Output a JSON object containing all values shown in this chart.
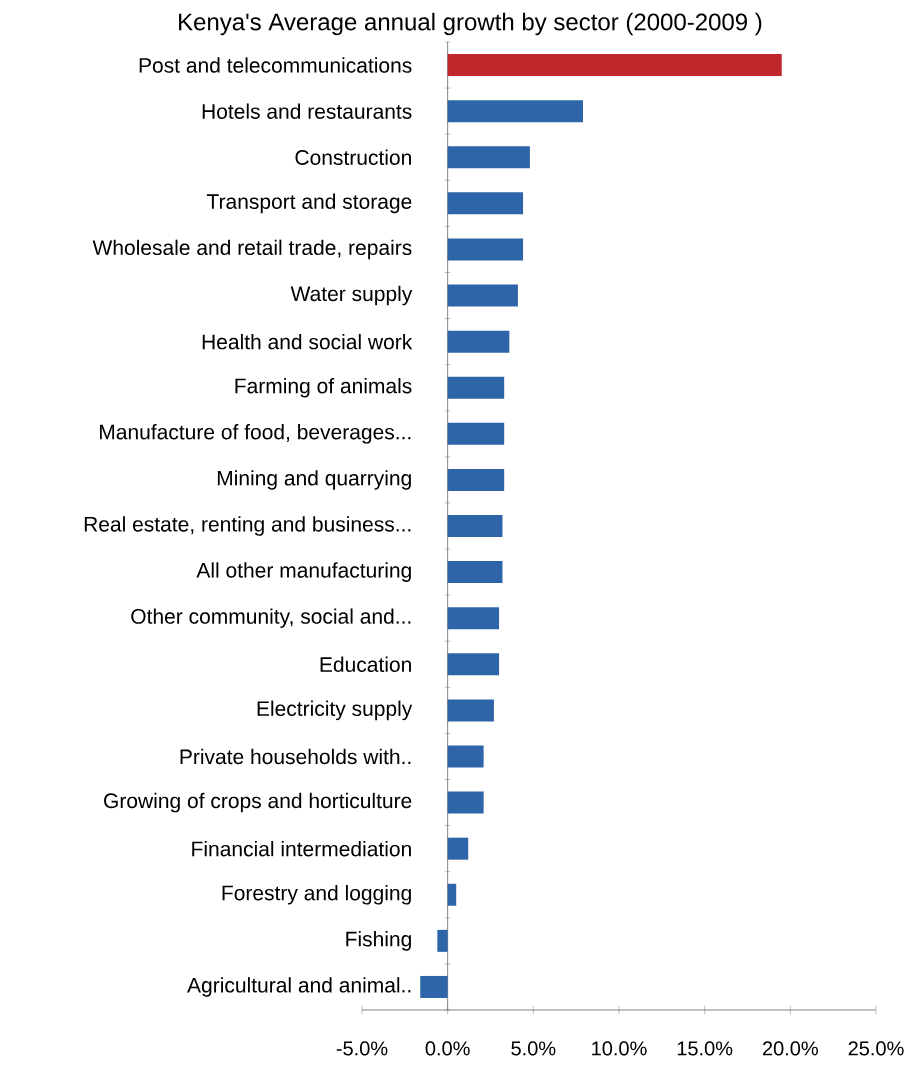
{
  "chart_data": {
    "type": "bar",
    "orientation": "horizontal",
    "title": "Kenya's Average annual growth by sector (2000-2009 )",
    "categories": [
      "Post and telecommunications",
      "Hotels and restaurants",
      "Construction",
      "Transport and storage",
      "Wholesale and retail trade, repairs",
      "Water supply",
      "Health and social work",
      "Farming of animals",
      "Manufacture of food, beverages...",
      "Mining and quarrying",
      "Real estate, renting and business...",
      "All other manufacturing",
      "Other community, social and...",
      "Education",
      "Electricity supply",
      "Private households with..",
      "Growing of crops and horticulture",
      "Financial intermediation",
      "Forestry and logging",
      "Fishing",
      "Agricultural and animal.."
    ],
    "values": [
      19.5,
      7.9,
      4.8,
      4.4,
      4.4,
      4.1,
      3.6,
      3.3,
      3.3,
      3.3,
      3.2,
      3.2,
      3.0,
      3.0,
      2.7,
      2.1,
      2.1,
      1.2,
      0.5,
      -0.6,
      -1.6
    ],
    "colors": [
      "#c0282d",
      "#2e65a8",
      "#2e65a8",
      "#2e65a8",
      "#2e65a8",
      "#2e65a8",
      "#2e65a8",
      "#2e65a8",
      "#2e65a8",
      "#2e65a8",
      "#2e65a8",
      "#2e65a8",
      "#2e65a8",
      "#2e65a8",
      "#2e65a8",
      "#2e65a8",
      "#2e65a8",
      "#2e65a8",
      "#2e65a8",
      "#2e65a8",
      "#2e65a8"
    ],
    "xlim": [
      -5,
      25
    ],
    "xticks": [
      {
        "value": -5,
        "label": "-5.0%"
      },
      {
        "value": 0,
        "label": "0.0%"
      },
      {
        "value": 5,
        "label": "5.0%"
      },
      {
        "value": 10,
        "label": "10.0%"
      },
      {
        "value": 15,
        "label": "15.0%"
      },
      {
        "value": 20,
        "label": "20.0%"
      },
      {
        "value": 25,
        "label": "25.0%"
      }
    ],
    "grid": false
  }
}
